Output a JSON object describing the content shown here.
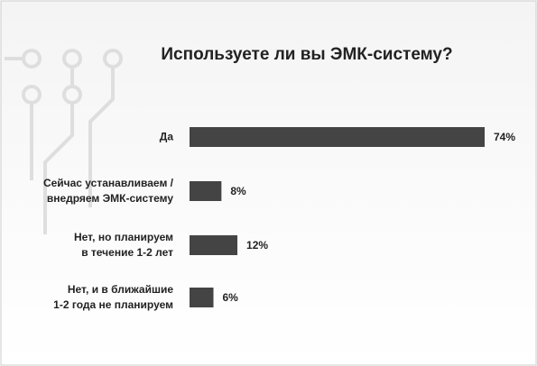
{
  "chart_data": {
    "type": "bar",
    "orientation": "horizontal",
    "title": "Используете ли вы ЭМК-систему?",
    "categories": [
      "Да",
      "Сейчас устанавливаем /\nвнедряем ЭМК-систему",
      "Нет, но планируем\nв течение 1-2 лет",
      "Нет, и в ближайшие\n1-2 года не планируем"
    ],
    "values": [
      74,
      8,
      12,
      6
    ],
    "value_labels": [
      "74%",
      "8%",
      "12%",
      "6%"
    ],
    "color": "#444444"
  }
}
